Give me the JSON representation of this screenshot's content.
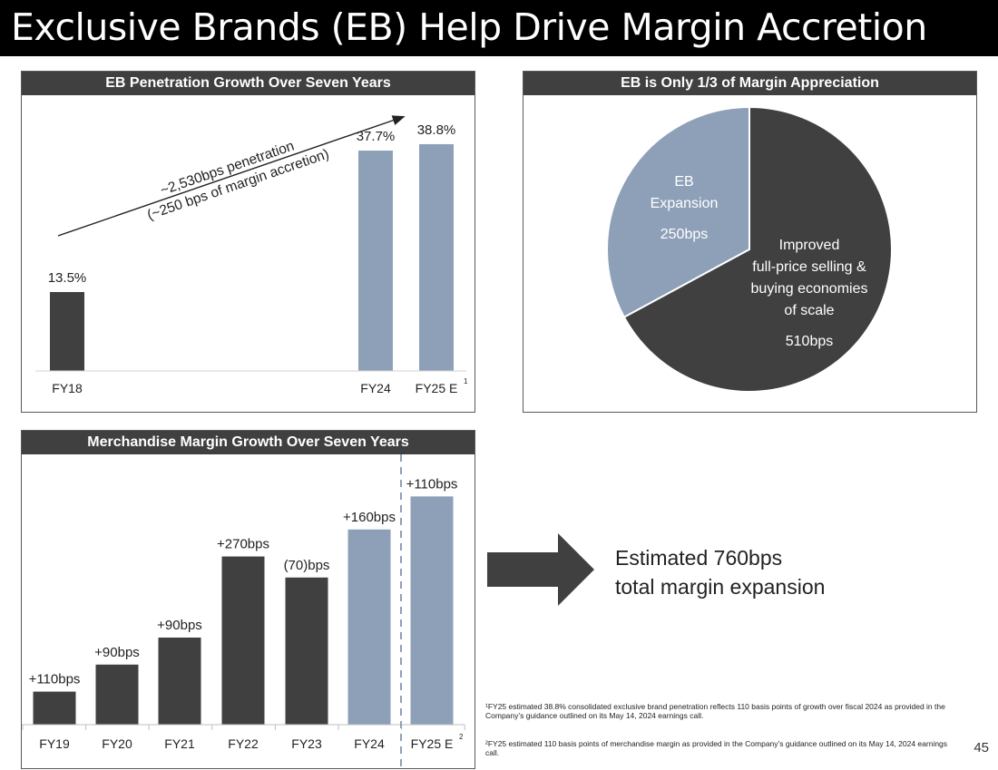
{
  "page": {
    "title": "Exclusive Brands (EB) Help Drive Margin Accretion",
    "page_number": "45",
    "arrow_text_line1": "Estimated 760bps",
    "arrow_text_line2": "total margin expansion",
    "footnote1": "¹FY25 estimated 38.8% consolidated exclusive brand penetration reflects 110 basis points of growth over fiscal 2024 as provided in the Company’s guidance outlined on its May 14, 2024 earnings call.",
    "footnote2": "²FY25 estimated 110 basis points of merchandise margin as provided in the Company’s guidance outlined on its May 14, 2024 earnings call."
  },
  "colors": {
    "dark": "#404040",
    "light": "#8ea0b8",
    "header": "#404040"
  },
  "chart_data": [
    {
      "id": "eb_penetration",
      "type": "bar",
      "title": "EB Penetration Growth Over Seven Years",
      "categories": [
        "FY18",
        "FY24",
        "FY25 E"
      ],
      "category_superscripts": [
        "",
        "",
        "1"
      ],
      "values": [
        13.5,
        37.7,
        38.8
      ],
      "labels": [
        "13.5%",
        "37.7%",
        "38.8%"
      ],
      "bar_colors": [
        "#404040",
        "#8ea0b8",
        "#8ea0b8"
      ],
      "annotation_line1": "~2,530bps penetration",
      "annotation_line2": "(~250 bps of margin accretion)",
      "ylim": [
        0,
        45
      ]
    },
    {
      "id": "margin_appreciation",
      "type": "pie",
      "title": "EB is Only 1/3 of Margin Appreciation",
      "slices": [
        {
          "label_lines": [
            "EB",
            "Expansion"
          ],
          "value": 250,
          "value_label": "250bps",
          "color": "#8ea0b8"
        },
        {
          "label_lines": [
            "Improved",
            "full-price selling &",
            "buying economies",
            "of scale"
          ],
          "value": 510,
          "value_label": "510bps",
          "color": "#404040"
        }
      ]
    },
    {
      "id": "merch_margin",
      "type": "bar",
      "title": "Merchandise Margin Growth Over Seven Years",
      "categories": [
        "FY19",
        "FY20",
        "FY21",
        "FY22",
        "FY23",
        "FY24",
        "FY25 E"
      ],
      "category_superscripts": [
        "",
        "",
        "",
        "",
        "",
        "",
        "2"
      ],
      "values": [
        110,
        200,
        290,
        560,
        490,
        650,
        760
      ],
      "labels": [
        "+110bps",
        "+90bps",
        "+90bps",
        "+270bps",
        "(70)bps",
        "+160bps",
        "+110bps"
      ],
      "bar_colors": [
        "#404040",
        "#404040",
        "#404040",
        "#404040",
        "#404040",
        "#8ea0b8",
        "#8ea0b8"
      ],
      "ylim": [
        0,
        900
      ]
    }
  ]
}
